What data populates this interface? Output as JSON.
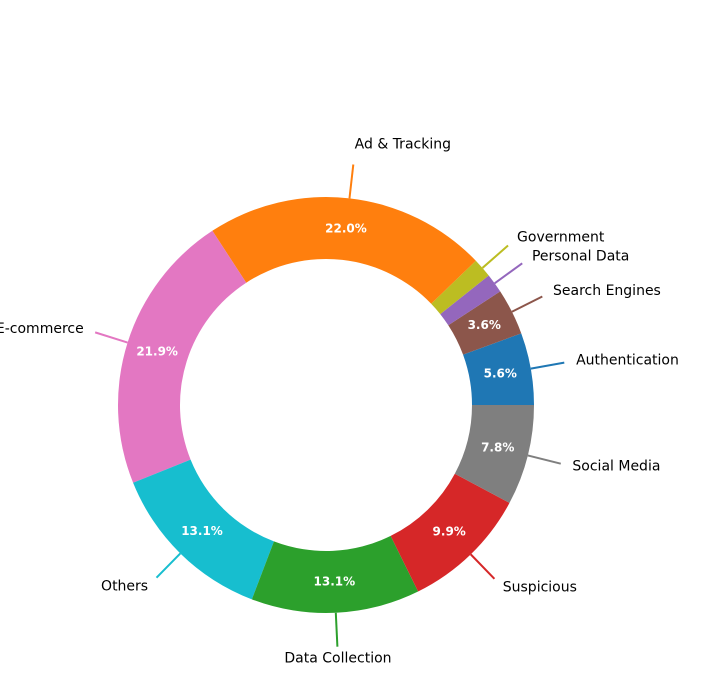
{
  "chart_data": {
    "type": "pie",
    "donut": true,
    "title": "",
    "slices": [
      {
        "label": "Authentication",
        "value": 5.6,
        "color": "#1f77b4",
        "show_pct": true
      },
      {
        "label": "Search Engines",
        "value": 3.6,
        "color": "#8c564b",
        "show_pct": true
      },
      {
        "label": "Personal Data",
        "value": 1.5,
        "color": "#9467bd",
        "show_pct": false
      },
      {
        "label": "Government",
        "value": 1.5,
        "color": "#bcbd22",
        "show_pct": false
      },
      {
        "label": "Ad & Tracking",
        "value": 22.0,
        "color": "#ff7f0e",
        "show_pct": true
      },
      {
        "label": "E-commerce",
        "value": 21.9,
        "color": "#e377c2",
        "show_pct": true
      },
      {
        "label": "Others",
        "value": 13.1,
        "color": "#17becf",
        "show_pct": true
      },
      {
        "label": "Data Collection",
        "value": 13.1,
        "color": "#2ca02c",
        "show_pct": true
      },
      {
        "label": "Suspicious",
        "value": 9.9,
        "color": "#d62728",
        "show_pct": true
      },
      {
        "label": "Social Media",
        "value": 7.8,
        "color": "#7f7f7f",
        "show_pct": true
      }
    ]
  }
}
